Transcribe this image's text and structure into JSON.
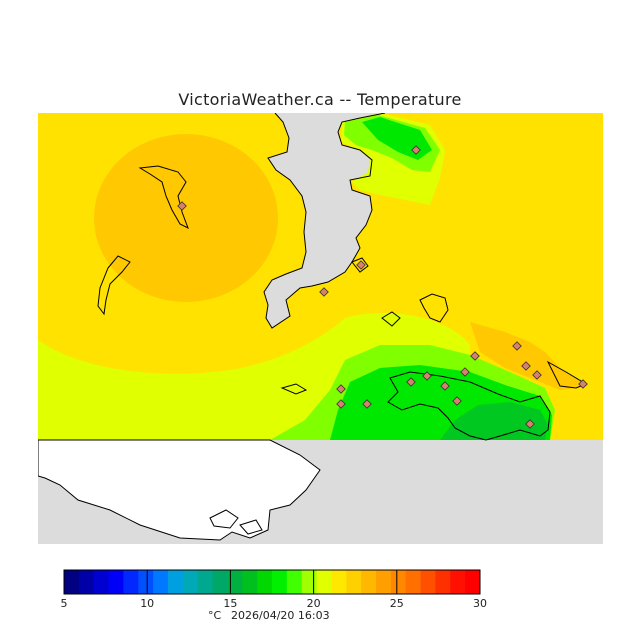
{
  "title": "VictoriaWeather.ca -- Temperature",
  "legend": {
    "ticks": [
      "5",
      "10",
      "15",
      "20",
      "25",
      "30"
    ],
    "unit": "°C",
    "timestamp": "2026/04/20 16:03",
    "colors": [
      "#000080",
      "#0000a8",
      "#0000d0",
      "#0000f8",
      "#0028ff",
      "#0050ff",
      "#0078ff",
      "#00a0e0",
      "#00a8b8",
      "#00a890",
      "#00a868",
      "#00b040",
      "#00c020",
      "#00d800",
      "#00f000",
      "#40ff00",
      "#a0ff00",
      "#e0ff00",
      "#ffe800",
      "#ffd000",
      "#ffb800",
      "#ffa000",
      "#ff8800",
      "#ff7000",
      "#ff5000",
      "#ff3000",
      "#ff1000",
      "#ff0000"
    ]
  },
  "colors": {
    "water": "#dcdcdc",
    "land_no_data": "#ffffff",
    "temp_22": "#ffe200",
    "temp_23": "#ffc800",
    "temp_21": "#e0ff00",
    "temp_20": "#80ff00",
    "temp_18": "#00e800",
    "temp_17": "#00c820",
    "station": "#d88070"
  }
}
